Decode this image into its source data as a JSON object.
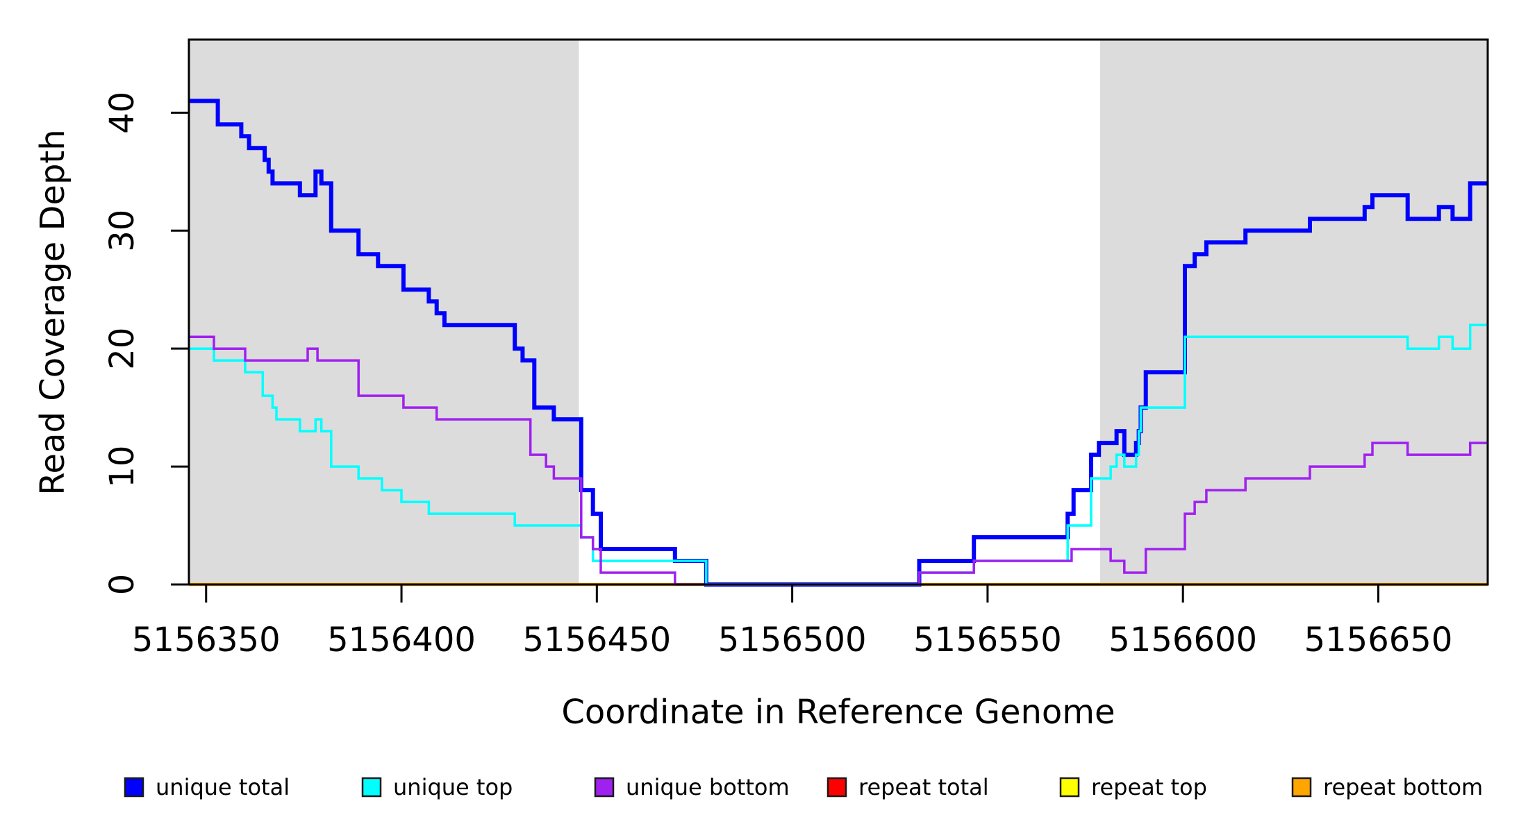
{
  "figure": {
    "title": "",
    "x_axis_label": "Coordinate in Reference Genome",
    "y_axis_label": "Read Coverage Depth"
  },
  "chart_data": {
    "type": "line",
    "subtype": "step",
    "title": "",
    "xlabel": "Coordinate in Reference Genome",
    "ylabel": "Read Coverage Depth",
    "xlim": [
      5156345.6,
      5156678
    ],
    "ylim": [
      0,
      46.2
    ],
    "x_ticks": [
      5156350,
      5156400,
      5156450,
      5156500,
      5156550,
      5156600,
      5156650
    ],
    "y_ticks": [
      0,
      10,
      20,
      30,
      40
    ],
    "grid": false,
    "legend_position": "bottom",
    "plot_background": "#ffffff",
    "shaded_band_color": "#DCDCDC",
    "background_bands": [
      {
        "x0": 5156345.6,
        "x1": 5156445.4
      },
      {
        "x0": 5156578.8,
        "x1": 5156678.0
      }
    ],
    "series": [
      {
        "name": "unique total",
        "color": "#0000FF",
        "width": 6,
        "z": 4,
        "steps": [
          [
            5156345.6,
            41
          ],
          [
            5156353,
            39
          ],
          [
            5156359,
            38
          ],
          [
            5156361,
            37
          ],
          [
            5156365,
            36
          ],
          [
            5156366,
            35
          ],
          [
            5156367,
            34
          ],
          [
            5156374,
            33
          ],
          [
            5156378,
            35
          ],
          [
            5156379.5,
            34
          ],
          [
            5156382,
            30
          ],
          [
            5156389,
            28
          ],
          [
            5156394,
            27
          ],
          [
            5156400.5,
            25
          ],
          [
            5156407,
            24
          ],
          [
            5156409,
            23
          ],
          [
            5156411,
            22
          ],
          [
            5156429,
            20
          ],
          [
            5156431,
            19
          ],
          [
            5156434,
            15
          ],
          [
            5156439,
            14
          ],
          [
            5156446,
            8
          ],
          [
            5156449,
            6
          ],
          [
            5156451,
            3
          ],
          [
            5156470,
            2
          ],
          [
            5156478,
            0
          ],
          [
            5156532.5,
            2
          ],
          [
            5156546.5,
            4
          ],
          [
            5156570.5,
            6
          ],
          [
            5156572,
            8
          ],
          [
            5156576.5,
            11
          ],
          [
            5156578.5,
            12
          ],
          [
            5156583,
            13
          ],
          [
            5156585,
            11
          ],
          [
            5156588,
            12
          ],
          [
            5156588.7,
            13
          ],
          [
            5156589.2,
            15
          ],
          [
            5156590.5,
            18
          ],
          [
            5156600.5,
            27
          ],
          [
            5156603,
            28
          ],
          [
            5156606,
            29
          ],
          [
            5156616,
            30
          ],
          [
            5156632.5,
            31
          ],
          [
            5156646.5,
            32
          ],
          [
            5156648.5,
            33
          ],
          [
            5156657.5,
            31
          ],
          [
            5156665.5,
            32
          ],
          [
            5156669,
            31
          ],
          [
            5156673.5,
            34
          ]
        ]
      },
      {
        "name": "unique top",
        "color": "#00FFFF",
        "width": 3.5,
        "z": 5,
        "steps": [
          [
            5156345.6,
            20
          ],
          [
            5156352,
            19
          ],
          [
            5156360,
            18
          ],
          [
            5156364.5,
            16
          ],
          [
            5156367,
            15
          ],
          [
            5156368,
            14
          ],
          [
            5156374,
            13
          ],
          [
            5156378,
            14
          ],
          [
            5156379.5,
            13
          ],
          [
            5156382,
            10
          ],
          [
            5156389,
            9
          ],
          [
            5156395,
            8
          ],
          [
            5156400,
            7
          ],
          [
            5156407,
            6
          ],
          [
            5156429,
            5
          ],
          [
            5156446,
            4
          ],
          [
            5156449,
            2
          ],
          [
            5156478,
            0
          ],
          [
            5156532.5,
            1
          ],
          [
            5156546.5,
            2
          ],
          [
            5156570.5,
            5
          ],
          [
            5156576.5,
            9
          ],
          [
            5156581.5,
            10
          ],
          [
            5156583,
            11
          ],
          [
            5156585,
            10
          ],
          [
            5156588,
            11
          ],
          [
            5156588.7,
            13
          ],
          [
            5156589.2,
            15
          ],
          [
            5156600.5,
            21
          ],
          [
            5156657.5,
            20
          ],
          [
            5156665.5,
            21
          ],
          [
            5156669,
            20
          ],
          [
            5156673.5,
            22
          ]
        ]
      },
      {
        "name": "unique bottom",
        "color": "#A020F0",
        "width": 3.5,
        "z": 6,
        "steps": [
          [
            5156345.6,
            21
          ],
          [
            5156352,
            20
          ],
          [
            5156360,
            19
          ],
          [
            5156376,
            20
          ],
          [
            5156378.5,
            19
          ],
          [
            5156389,
            16
          ],
          [
            5156400.5,
            15
          ],
          [
            5156409,
            14
          ],
          [
            5156433,
            11
          ],
          [
            5156437,
            10
          ],
          [
            5156439,
            9
          ],
          [
            5156446,
            4
          ],
          [
            5156449,
            3
          ],
          [
            5156451,
            1
          ],
          [
            5156470,
            0
          ],
          [
            5156532.5,
            1
          ],
          [
            5156546.5,
            2
          ],
          [
            5156571.5,
            3
          ],
          [
            5156581.5,
            2
          ],
          [
            5156585,
            1
          ],
          [
            5156590.5,
            3
          ],
          [
            5156600.5,
            6
          ],
          [
            5156603,
            7
          ],
          [
            5156606,
            8
          ],
          [
            5156616,
            9
          ],
          [
            5156632.5,
            10
          ],
          [
            5156646.5,
            11
          ],
          [
            5156648.5,
            12
          ],
          [
            5156657.5,
            11
          ],
          [
            5156673.5,
            12
          ]
        ]
      },
      {
        "name": "repeat total",
        "color": "#FF0000",
        "width": 3,
        "z": 1,
        "steps": [
          [
            5156345.6,
            0
          ]
        ]
      },
      {
        "name": "repeat top",
        "color": "#FFFF00",
        "width": 3,
        "z": 2,
        "steps": [
          [
            5156345.6,
            0
          ]
        ]
      },
      {
        "name": "repeat bottom",
        "color": "#FFA500",
        "width": 4.5,
        "z": 3,
        "steps": [
          [
            5156345.6,
            0
          ]
        ]
      }
    ]
  }
}
